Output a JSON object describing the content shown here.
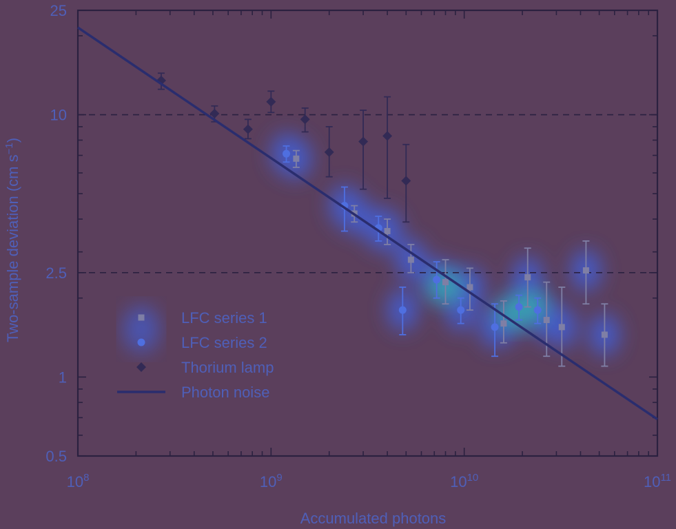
{
  "chart_data": {
    "type": "scatter",
    "xlabel": "Accumulated photons",
    "ylabel_main": "Two-sample deviation (cm s",
    "ylabel_sup": "−1",
    "ylabel_close": ")",
    "xscale": "log",
    "yscale": "log",
    "xlim": [
      100000000,
      100000000000
    ],
    "ylim": [
      0.5,
      25
    ],
    "x_ticks": [
      {
        "value": 100000000,
        "base": "10",
        "exp": "8"
      },
      {
        "value": 1000000000,
        "base": "10",
        "exp": "9"
      },
      {
        "value": 10000000000,
        "base": "10",
        "exp": "10"
      },
      {
        "value": 100000000000,
        "base": "10",
        "exp": "11"
      }
    ],
    "y_ticks": [
      {
        "value": 0.5,
        "label": "0.5"
      },
      {
        "value": 1,
        "label": "1"
      },
      {
        "value": 2.5,
        "label": "2.5"
      },
      {
        "value": 10,
        "label": "10"
      },
      {
        "value": 25,
        "label": "25"
      }
    ],
    "reference_lines": [
      10,
      2.5
    ],
    "legend_position": "lower-left",
    "colors": {
      "background": "#5b3f5c",
      "axis": "#2b2140",
      "text": "#4f5fb8",
      "photon_noise": "#2a2d6e",
      "thorium": "#322a55",
      "lfc1": "#7f7fa5",
      "lfc2": "#4f6fe0"
    },
    "series": [
      {
        "name": "LFC series 1",
        "marker": "square",
        "points": [
          {
            "x": 1350000000,
            "y": 6.8,
            "lo": 6.3,
            "hi": 7.3
          },
          {
            "x": 2700000000,
            "y": 4.2,
            "lo": 3.9,
            "hi": 4.5
          },
          {
            "x": 4000000000,
            "y": 3.6,
            "lo": 3.2,
            "hi": 4.0
          },
          {
            "x": 5300000000,
            "y": 2.8,
            "lo": 2.5,
            "hi": 3.2
          },
          {
            "x": 8000000000,
            "y": 2.3,
            "lo": 1.9,
            "hi": 2.8
          },
          {
            "x": 10700000000,
            "y": 2.2,
            "lo": 1.8,
            "hi": 2.6
          },
          {
            "x": 16000000000,
            "y": 1.6,
            "lo": 1.35,
            "hi": 1.95
          },
          {
            "x": 21300000000,
            "y": 2.4,
            "lo": 1.85,
            "hi": 3.1
          },
          {
            "x": 26700000000,
            "y": 1.65,
            "lo": 1.2,
            "hi": 2.3
          },
          {
            "x": 32000000000,
            "y": 1.55,
            "lo": 1.1,
            "hi": 2.2
          },
          {
            "x": 42700000000,
            "y": 2.55,
            "lo": 1.9,
            "hi": 3.3
          },
          {
            "x": 53300000000,
            "y": 1.45,
            "lo": 1.1,
            "hi": 1.9
          }
        ]
      },
      {
        "name": "LFC series 2",
        "marker": "circle",
        "points": [
          {
            "x": 1200000000,
            "y": 7.1,
            "lo": 6.6,
            "hi": 7.6
          },
          {
            "x": 2400000000,
            "y": 4.5,
            "lo": 3.6,
            "hi": 5.3
          },
          {
            "x": 3600000000,
            "y": 3.7,
            "lo": 3.3,
            "hi": 4.1
          },
          {
            "x": 4800000000,
            "y": 1.8,
            "lo": 1.45,
            "hi": 2.2
          },
          {
            "x": 7200000000,
            "y": 2.35,
            "lo": 2.0,
            "hi": 2.75
          },
          {
            "x": 9600000000,
            "y": 1.8,
            "lo": 1.6,
            "hi": 2.0
          },
          {
            "x": 14400000000,
            "y": 1.55,
            "lo": 1.2,
            "hi": 1.9
          },
          {
            "x": 19200000000,
            "y": 1.85,
            "lo": 1.65,
            "hi": 2.05
          },
          {
            "x": 24000000000,
            "y": 1.8,
            "lo": 1.6,
            "hi": 2.0
          }
        ]
      },
      {
        "name": "Thorium lamp",
        "marker": "diamond",
        "points": [
          {
            "x": 270000000,
            "y": 13.5,
            "lo": 12.5,
            "hi": 14.4
          },
          {
            "x": 510000000,
            "y": 10.1,
            "lo": 9.4,
            "hi": 10.8
          },
          {
            "x": 760000000,
            "y": 8.8,
            "lo": 8.1,
            "hi": 9.6
          },
          {
            "x": 1000000000,
            "y": 11.2,
            "lo": 10.2,
            "hi": 12.3
          },
          {
            "x": 1500000000,
            "y": 9.6,
            "lo": 8.6,
            "hi": 10.6
          },
          {
            "x": 2000000000,
            "y": 7.2,
            "lo": 5.8,
            "hi": 9.0
          },
          {
            "x": 3000000000,
            "y": 7.9,
            "lo": 5.2,
            "hi": 10.4
          },
          {
            "x": 4000000000,
            "y": 8.3,
            "lo": 4.8,
            "hi": 11.7
          },
          {
            "x": 5000000000,
            "y": 5.6,
            "lo": 3.9,
            "hi": 7.7
          }
        ]
      },
      {
        "name": "Photon noise",
        "marker": "line",
        "points": [
          {
            "x": 100000000,
            "y": 21.5
          },
          {
            "x": 100000000000,
            "y": 0.69
          }
        ]
      }
    ]
  }
}
